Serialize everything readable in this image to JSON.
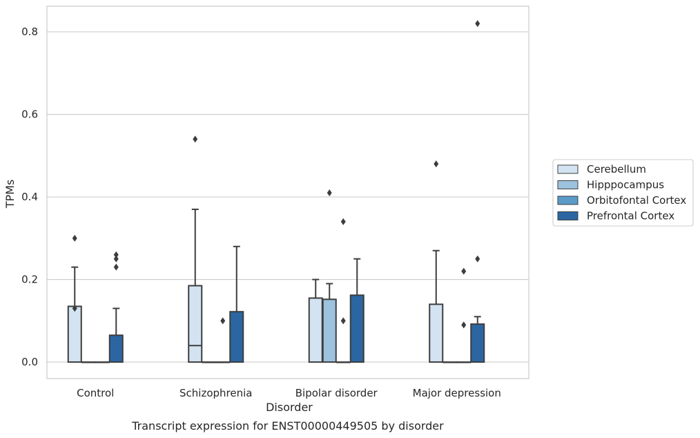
{
  "chart_data": {
    "type": "box",
    "title": "",
    "caption": "Transcript expression for ENST00000449505 by disorder",
    "xlabel": "Disorder",
    "ylabel": "TPMs",
    "ylim": [
      -0.04,
      0.862
    ],
    "yticks": [
      "0.0",
      "0.2",
      "0.4",
      "0.6",
      "0.8"
    ],
    "ytick_values": [
      0.0,
      0.2,
      0.4,
      0.6,
      0.8
    ],
    "grid": "horizontal",
    "legend_position": "right",
    "categories": [
      "Control",
      "Schizophrenia",
      "Bipolar disorder",
      "Major depression"
    ],
    "series": [
      {
        "name": "Cerebellum",
        "color": "#d3e3f2",
        "boxes": [
          {
            "q1": 0.0,
            "median": 0.0,
            "q3": 0.135,
            "whisker_low": 0.0,
            "whisker_high": 0.23,
            "outliers": [
              0.3,
              0.13
            ]
          },
          {
            "q1": 0.0,
            "median": 0.04,
            "q3": 0.185,
            "whisker_low": 0.0,
            "whisker_high": 0.37,
            "outliers": [
              0.54
            ]
          },
          {
            "q1": 0.0,
            "median": 0.0,
            "q3": 0.155,
            "whisker_low": 0.0,
            "whisker_high": 0.2,
            "outliers": []
          },
          {
            "q1": 0.0,
            "median": 0.0,
            "q3": 0.14,
            "whisker_low": 0.0,
            "whisker_high": 0.27,
            "outliers": [
              0.48
            ]
          }
        ]
      },
      {
        "name": "Hipppocampus",
        "color": "#9cc2dd",
        "boxes": [
          {
            "q1": 0.0,
            "median": 0.0,
            "q3": 0.0,
            "whisker_low": 0.0,
            "whisker_high": 0.0,
            "outliers": []
          },
          {
            "q1": 0.0,
            "median": 0.0,
            "q3": 0.0,
            "whisker_low": 0.0,
            "whisker_high": 0.0,
            "outliers": []
          },
          {
            "q1": 0.0,
            "median": 0.0,
            "q3": 0.152,
            "whisker_low": 0.0,
            "whisker_high": 0.19,
            "outliers": [
              0.41
            ]
          },
          {
            "q1": 0.0,
            "median": 0.0,
            "q3": 0.0,
            "whisker_low": 0.0,
            "whisker_high": 0.0,
            "outliers": []
          }
        ]
      },
      {
        "name": "Orbitofontal Cortex",
        "color": "#5b9ac9",
        "boxes": [
          {
            "q1": 0.0,
            "median": 0.0,
            "q3": 0.0,
            "whisker_low": 0.0,
            "whisker_high": 0.0,
            "outliers": []
          },
          {
            "q1": 0.0,
            "median": 0.0,
            "q3": 0.0,
            "whisker_low": 0.0,
            "whisker_high": 0.0,
            "outliers": [
              0.1
            ]
          },
          {
            "q1": 0.0,
            "median": 0.0,
            "q3": 0.0,
            "whisker_low": 0.0,
            "whisker_high": 0.0,
            "outliers": [
              0.34,
              0.1
            ]
          },
          {
            "q1": 0.0,
            "median": 0.0,
            "q3": 0.0,
            "whisker_low": 0.0,
            "whisker_high": 0.0,
            "outliers": [
              0.22,
              0.09
            ]
          }
        ]
      },
      {
        "name": "Prefrontal Cortex",
        "color": "#2b66a3",
        "boxes": [
          {
            "q1": 0.0,
            "median": 0.0,
            "q3": 0.065,
            "whisker_low": 0.0,
            "whisker_high": 0.13,
            "outliers": [
              0.26,
              0.25,
              0.23
            ]
          },
          {
            "q1": 0.0,
            "median": 0.0,
            "q3": 0.122,
            "whisker_low": 0.0,
            "whisker_high": 0.28,
            "outliers": []
          },
          {
            "q1": 0.0,
            "median": 0.0,
            "q3": 0.162,
            "whisker_low": 0.0,
            "whisker_high": 0.25,
            "outliers": []
          },
          {
            "q1": 0.0,
            "median": 0.0,
            "q3": 0.092,
            "whisker_low": 0.0,
            "whisker_high": 0.11,
            "outliers": [
              0.82,
              0.25
            ]
          }
        ]
      }
    ]
  }
}
